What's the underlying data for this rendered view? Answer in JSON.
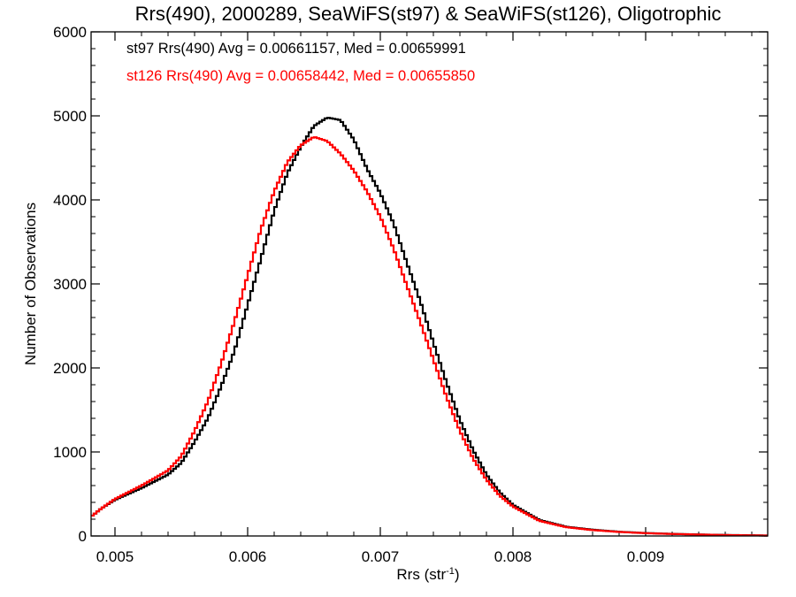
{
  "chart_data": {
    "type": "line",
    "style": "step-histogram",
    "title": "Rrs(490), 2000289, SeaWiFS(st97) & SeaWiFS(st126), Oligotrophic",
    "xlabel_main": "Rrs (str",
    "xlabel_sup": "-1",
    "xlabel_close": ")",
    "ylabel": "Number of Observations",
    "xlim": [
      0.00482,
      0.00992
    ],
    "ylim": [
      0,
      6000
    ],
    "x_ticks": [
      0.005,
      0.006,
      0.007,
      0.008,
      0.009
    ],
    "x_tick_labels": [
      "0.005",
      "0.006",
      "0.007",
      "0.008",
      "0.009"
    ],
    "y_ticks": [
      0,
      1000,
      2000,
      3000,
      4000,
      5000,
      6000
    ],
    "y_tick_labels": [
      "0",
      "1000",
      "2000",
      "3000",
      "4000",
      "5000",
      "6000"
    ],
    "legend_position": "top-left",
    "series": [
      {
        "name": "st97",
        "label": "st97 Rrs(490) Avg = 0.00661157, Med = 0.00659991",
        "color": "#000000",
        "x": [
          0.00482,
          0.0049,
          0.005,
          0.0052,
          0.0054,
          0.0055,
          0.0056,
          0.0057,
          0.0058,
          0.0059,
          0.006,
          0.0061,
          0.0062,
          0.0063,
          0.0064,
          0.0065,
          0.0066,
          0.0067,
          0.0068,
          0.0069,
          0.007,
          0.0071,
          0.0072,
          0.0073,
          0.0074,
          0.0075,
          0.0076,
          0.0077,
          0.0078,
          0.0079,
          0.008,
          0.0082,
          0.0084,
          0.0086,
          0.0088,
          0.009,
          0.0092,
          0.0094,
          0.0096,
          0.0098,
          0.00992
        ],
        "y": [
          230,
          330,
          430,
          570,
          730,
          870,
          1120,
          1400,
          1780,
          2200,
          2750,
          3300,
          3870,
          4320,
          4630,
          4880,
          4980,
          4950,
          4720,
          4370,
          4080,
          3720,
          3250,
          2800,
          2300,
          1820,
          1380,
          1020,
          730,
          520,
          370,
          190,
          110,
          75,
          50,
          35,
          25,
          18,
          12,
          8,
          5
        ]
      },
      {
        "name": "st126",
        "label": "st126 Rrs(490) Avg = 0.00658442, Med = 0.00655850",
        "color": "#ff0000",
        "x": [
          0.00482,
          0.0049,
          0.005,
          0.0052,
          0.0054,
          0.0055,
          0.0056,
          0.0057,
          0.0058,
          0.0059,
          0.006,
          0.0061,
          0.0062,
          0.0063,
          0.0064,
          0.0065,
          0.0066,
          0.0067,
          0.0068,
          0.0069,
          0.007,
          0.0071,
          0.0072,
          0.0073,
          0.0074,
          0.0075,
          0.0076,
          0.0077,
          0.0078,
          0.0079,
          0.008,
          0.0082,
          0.0084,
          0.0086,
          0.0088,
          0.009,
          0.0092,
          0.0094,
          0.0096,
          0.0098,
          0.00992
        ],
        "y": [
          230,
          330,
          440,
          600,
          780,
          950,
          1250,
          1600,
          2050,
          2550,
          3100,
          3650,
          4100,
          4450,
          4650,
          4750,
          4700,
          4550,
          4350,
          4100,
          3800,
          3420,
          2980,
          2550,
          2100,
          1650,
          1250,
          920,
          670,
          480,
          350,
          180,
          105,
          70,
          48,
          33,
          24,
          17,
          11,
          7,
          5
        ]
      }
    ]
  }
}
